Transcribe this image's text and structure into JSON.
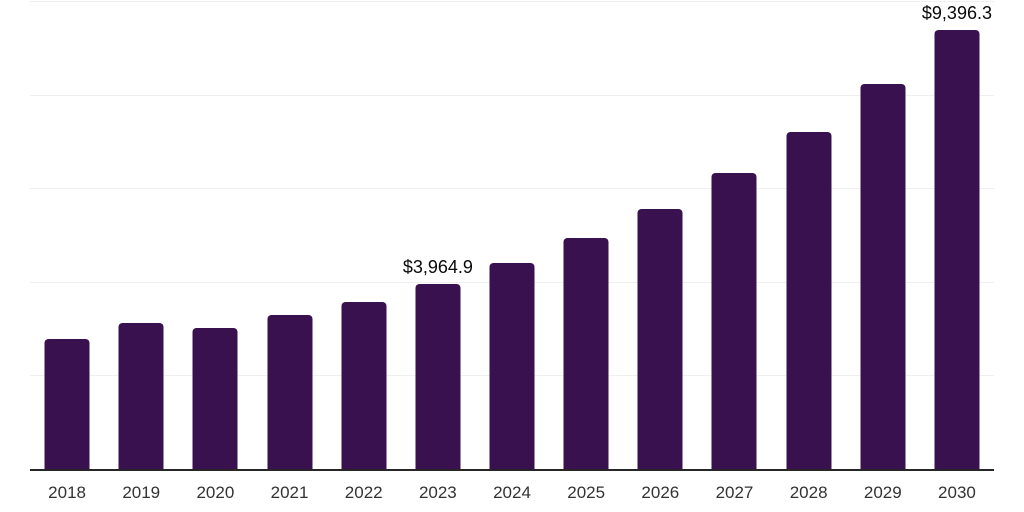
{
  "chart_data": {
    "type": "bar",
    "title": "",
    "xlabel": "",
    "ylabel": "",
    "categories": [
      "2018",
      "2019",
      "2020",
      "2021",
      "2022",
      "2023",
      "2024",
      "2025",
      "2026",
      "2027",
      "2028",
      "2029",
      "2030"
    ],
    "values": [
      2800,
      3150,
      3040,
      3310,
      3590,
      3964.9,
      4430,
      4950,
      5580,
      6350,
      7230,
      8240,
      9396.3
    ],
    "data_labels": {
      "2023": "$3,964.9",
      "2030": "$9,396.3"
    },
    "ylim": [
      0,
      10000
    ],
    "gridlines": [
      2000,
      4000,
      6000,
      8000,
      10000
    ],
    "grid": "on",
    "legend": "none",
    "colors": {
      "bar": "#38114E",
      "axis": "#262626",
      "gridline": "#efeff1",
      "tick_label": "#333333",
      "data_label": "#0a0a0a",
      "background": "#ffffff"
    }
  }
}
